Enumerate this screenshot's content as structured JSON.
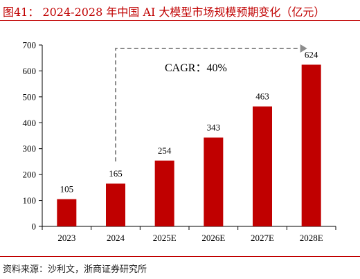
{
  "title": "图41：  2024-2028 年中国 AI 大模型市场规模预期变化（亿元）",
  "source": "资料来源：沙利文，浙商证券研究所",
  "annotation": "CAGR：40%",
  "colors": {
    "bar": "#c00000",
    "title": "#c00000",
    "arrow": "#8c8c8c",
    "axis": "#000000"
  },
  "chart_data": {
    "type": "bar",
    "title": "2024-2028 年中国 AI 大模型市场规模预期变化（亿元）",
    "categories": [
      "2023",
      "2024",
      "2025E",
      "2026E",
      "2027E",
      "2028E"
    ],
    "values": [
      105,
      165,
      254,
      343,
      463,
      624
    ],
    "xlabel": "",
    "ylabel": "",
    "ylim": [
      0,
      700
    ],
    "yticks": [
      0,
      100,
      200,
      300,
      400,
      500,
      600,
      700
    ],
    "grid": false,
    "data_labels": [
      "105",
      "165",
      "254",
      "343",
      "463",
      "624"
    ]
  }
}
